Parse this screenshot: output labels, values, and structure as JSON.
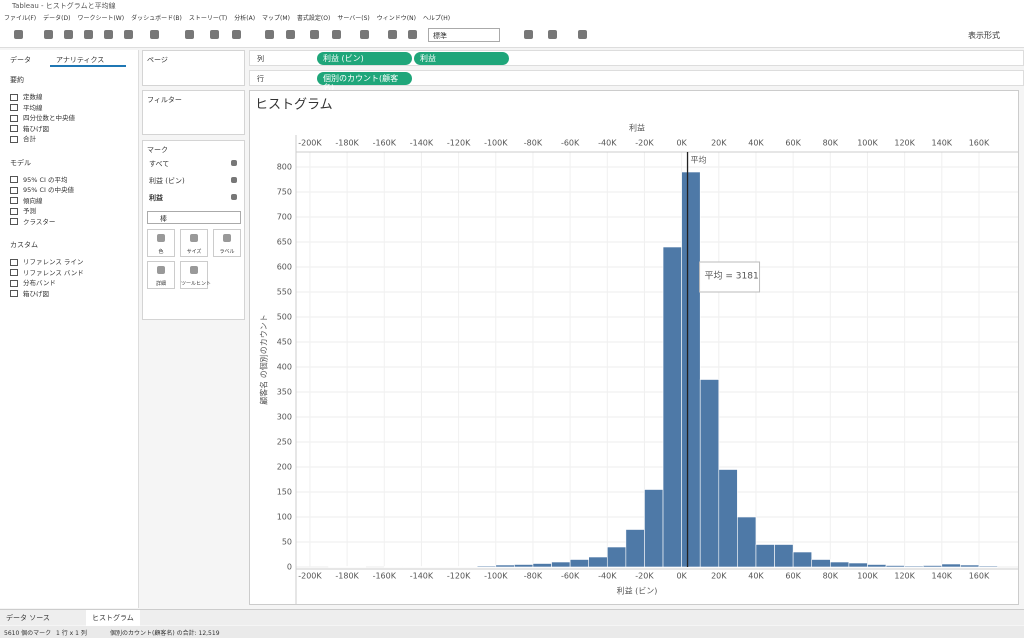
{
  "window": {
    "title": "Tableau - ヒストグラムと平均線"
  },
  "menu": [
    "ファイル(F)",
    "データ(D)",
    "ワークシート(W)",
    "ダッシュボード(B)",
    "ストーリー(T)",
    "分析(A)",
    "マップ(M)",
    "書式設定(O)",
    "サーバー(S)",
    "ウィンドウ(N)",
    "ヘルプ(H)"
  ],
  "toolbar": {
    "fit": "標準",
    "show_me": "表示形式"
  },
  "left_pane": {
    "tabs": [
      "データ",
      "アナリティクス"
    ],
    "sections": [
      {
        "title": "要約",
        "items": [
          "定数線",
          "平均線",
          "四分位数と中央値",
          "箱ひげ図",
          "合計"
        ]
      },
      {
        "title": "モデル",
        "items": [
          "95% CI の平均",
          "95% CI の中央値",
          "傾向線",
          "予測",
          "クラスター"
        ]
      },
      {
        "title": "カスタム",
        "items": [
          "リファレンス ライン",
          "リファレンス バンド",
          "分布バンド",
          "箱ひげ図"
        ]
      }
    ]
  },
  "cards": {
    "pages": "ページ",
    "filters": "フィルター",
    "marks": {
      "title": "マーク",
      "rows": [
        "すべて",
        "利益 (ビン)",
        "利益"
      ],
      "mark_type": "棒",
      "buttons": [
        "色",
        "サイズ",
        "ラベル",
        "詳細",
        "ツールヒント"
      ]
    }
  },
  "shelves": {
    "columns": {
      "label": "列",
      "pills": [
        "利益 (ビン)",
        "利益"
      ]
    },
    "rows": {
      "label": "行",
      "pills": [
        "個別のカウント(顧客名)"
      ]
    }
  },
  "chart_data": {
    "type": "histogram",
    "title": "ヒストグラム",
    "x_label": "利益 (ビン)",
    "x2_label": "利益",
    "y_label": "顧客名 の個別のカウント",
    "bins": [
      -200000,
      -190000,
      -180000,
      -170000,
      -160000,
      -150000,
      -140000,
      -130000,
      -120000,
      -110000,
      -100000,
      -90000,
      -80000,
      -70000,
      -60000,
      -50000,
      -40000,
      -30000,
      -20000,
      -10000,
      0,
      10000,
      20000,
      30000,
      40000,
      50000,
      60000,
      70000,
      80000,
      90000,
      100000,
      110000,
      120000,
      130000,
      140000,
      150000,
      160000,
      170000
    ],
    "values": [
      0,
      1,
      1,
      0,
      1,
      1,
      1,
      1,
      1,
      2,
      4,
      5,
      7,
      10,
      15,
      20,
      40,
      75,
      155,
      640,
      790,
      375,
      195,
      100,
      45,
      45,
      30,
      15,
      10,
      8,
      5,
      3,
      2,
      3,
      6,
      4,
      2
    ],
    "color": "#4e79a7",
    "xlim": [
      -207500,
      181000
    ],
    "ylim": [
      0,
      830
    ],
    "xticks": [
      {
        "value": -200000,
        "label": "-200K"
      },
      {
        "value": -180000,
        "label": "-180K"
      },
      {
        "value": -160000,
        "label": "-160K"
      },
      {
        "value": -140000,
        "label": "-140K"
      },
      {
        "value": -120000,
        "label": "-120K"
      },
      {
        "value": -100000,
        "label": "-100K"
      },
      {
        "value": -80000,
        "label": "-80K"
      },
      {
        "value": -60000,
        "label": "-60K"
      },
      {
        "value": -40000,
        "label": "-40K"
      },
      {
        "value": -20000,
        "label": "-20K"
      },
      {
        "value": 0,
        "label": "0K"
      },
      {
        "value": 20000,
        "label": "20K"
      },
      {
        "value": 40000,
        "label": "40K"
      },
      {
        "value": 60000,
        "label": "60K"
      },
      {
        "value": 80000,
        "label": "80K"
      },
      {
        "value": 100000,
        "label": "100K"
      },
      {
        "value": 120000,
        "label": "120K"
      },
      {
        "value": 140000,
        "label": "140K"
      },
      {
        "value": 160000,
        "label": "160K"
      }
    ],
    "yticks": [
      0,
      50,
      100,
      150,
      200,
      250,
      300,
      350,
      400,
      450,
      500,
      550,
      600,
      650,
      700,
      750,
      800
    ],
    "grid": true,
    "mean": {
      "label": "平均",
      "value": 3181,
      "tooltip": "平均 = 3181"
    }
  },
  "sheet_tabs": [
    "データ ソース",
    "ヒストグラム"
  ],
  "status_bar": [
    "5610 個のマーク",
    "1 行 x 1 列",
    "個別のカウント(顧客名) の合計: 12,519"
  ]
}
